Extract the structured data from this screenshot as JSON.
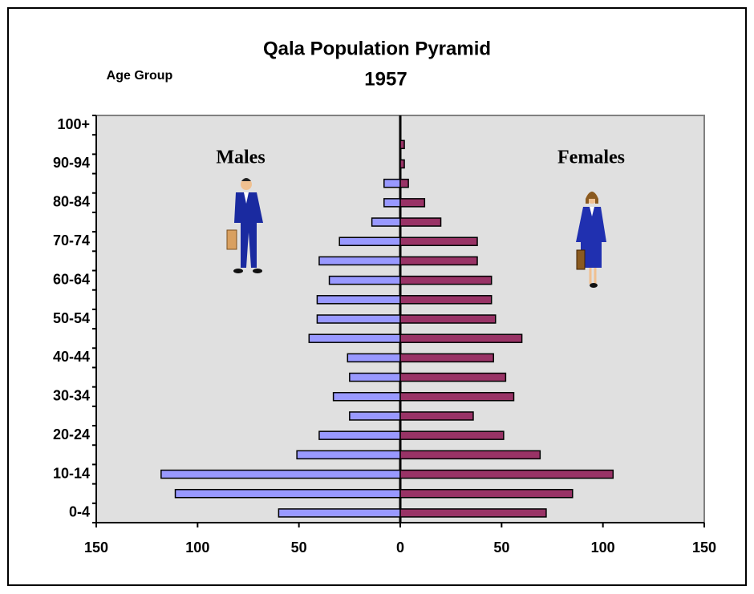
{
  "chart_data": {
    "type": "pyramid",
    "title": "Qala Population Pyramid",
    "subtitle": "1957",
    "y_label": "Age Group",
    "annotations": [
      "Males",
      "Females"
    ],
    "categories": [
      "0-4",
      null,
      "10-14",
      null,
      "20-24",
      null,
      "30-34",
      null,
      "40-44",
      null,
      "50-54",
      null,
      "60-64",
      null,
      "70-74",
      null,
      "80-84",
      null,
      "90-94",
      null,
      "100+"
    ],
    "series": [
      {
        "name": "Males",
        "color": "#9999ff",
        "values": [
          -60,
          -111,
          -118,
          -51,
          -40,
          -25,
          -33,
          -25,
          -26,
          -45,
          -41,
          -41,
          -35,
          -40,
          -30,
          -14,
          -8,
          -8,
          0,
          0,
          0
        ]
      },
      {
        "name": "Females",
        "color": "#993366",
        "values": [
          72,
          85,
          105,
          69,
          51,
          36,
          56,
          52,
          46,
          60,
          47,
          45,
          45,
          38,
          38,
          20,
          12,
          4,
          2,
          2,
          0
        ]
      }
    ],
    "xlim": [
      -150,
      150
    ],
    "xticks": [
      {
        "value": -150,
        "label": "150"
      },
      {
        "value": -100,
        "label": "100"
      },
      {
        "value": -50,
        "label": "50"
      },
      0,
      50,
      100,
      150
    ],
    "plot_background": "#e0e0e0"
  }
}
